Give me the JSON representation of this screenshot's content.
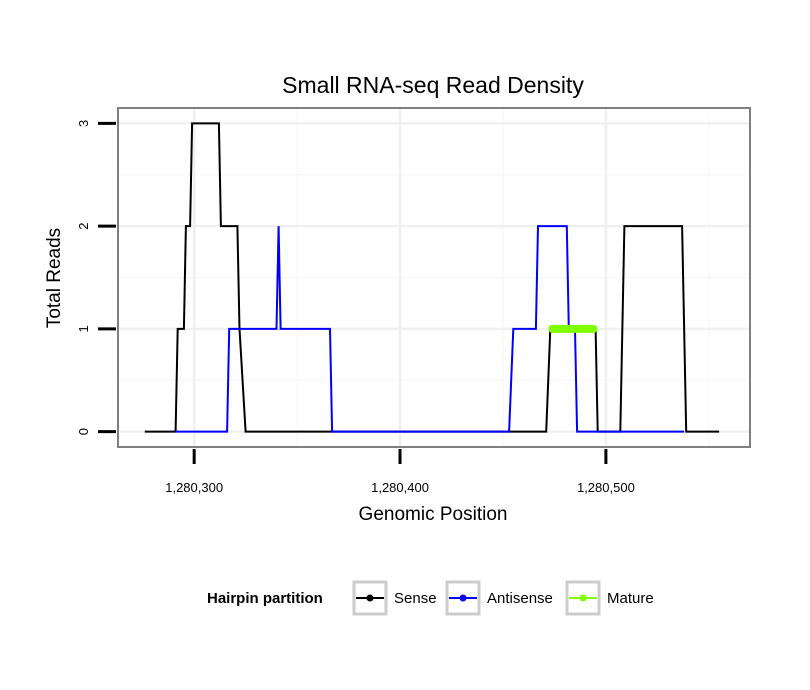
{
  "chart_data": {
    "type": "line",
    "title": "Small RNA-seq Read Density",
    "xlabel": "Genomic Position",
    "ylabel": "Total Reads",
    "xlim": [
      1280263,
      1280570
    ],
    "ylim": [
      -0.15,
      3.15
    ],
    "x_ticks": [
      1280300,
      1280400,
      1280500
    ],
    "x_tick_labels": [
      "1,280,300",
      "1,280,400",
      "1,280,500"
    ],
    "y_ticks": [
      0,
      1,
      2,
      3
    ],
    "y_tick_labels": [
      "0",
      "1",
      "2",
      "3"
    ],
    "grid": true,
    "legend_placement": "bottom",
    "legend_title": "Hairpin partition",
    "series": [
      {
        "name": "Sense",
        "color": "#000000",
        "x": [
          1280276,
          1280291,
          1280292,
          1280295,
          1280296,
          1280298,
          1280299,
          1280312,
          1280313,
          1280314,
          1280321,
          1280322,
          1280325,
          1280471,
          1280473,
          1280495,
          1280496,
          1280507,
          1280509,
          1280537,
          1280539,
          1280555
        ],
        "y": [
          0,
          0,
          1,
          1,
          2,
          2,
          3,
          3,
          2,
          2,
          2,
          1,
          0,
          0,
          1,
          1,
          0,
          0,
          2,
          2,
          0,
          0
        ]
      },
      {
        "name": "Antisense",
        "color": "#0000ff",
        "x": [
          1280291,
          1280316,
          1280317,
          1280340,
          1280341,
          1280342,
          1280343,
          1280366,
          1280367,
          1280453,
          1280455,
          1280466,
          1280467,
          1280481,
          1280482,
          1280485,
          1280486,
          1280538
        ],
        "y": [
          0,
          0,
          1,
          1,
          2,
          1,
          1,
          1,
          0,
          0,
          1,
          1,
          2,
          2,
          1,
          1,
          0,
          0
        ]
      },
      {
        "name": "Mature",
        "color": "#80ff00",
        "x": [
          1280474,
          1280494
        ],
        "y": [
          1,
          1
        ]
      }
    ]
  }
}
